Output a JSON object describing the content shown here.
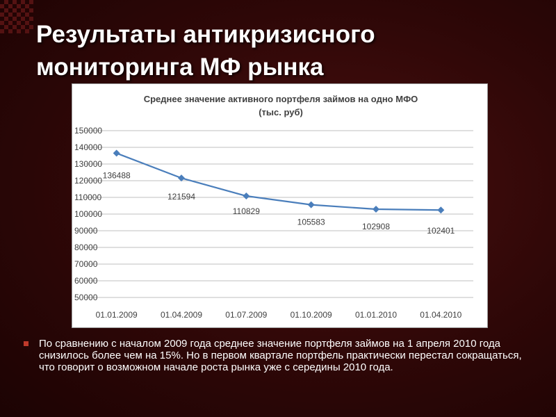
{
  "slide": {
    "title_line1": "Результаты антикризисного",
    "title_line2": "мониторинга МФ рынка",
    "paragraph": "По сравнению с началом 2009 года среднее значение портфеля займов на 1 апреля 2010 года снизилось более чем на 15%. Но в первом квартале портфель практически перестал сокращаться, что говорит о возможном начале роста рынка уже с середины 2010 года."
  },
  "colors": {
    "line": "#4a7ebb",
    "marker": "#4a7ebb",
    "bullet": "#c0392b"
  },
  "chart_data": {
    "type": "line",
    "title_line1": "Среднее значение активного портфеля займов на одно МФО",
    "title_line2": "(тыс. руб)",
    "categories": [
      "01.01.2009",
      "01.04.2009",
      "01.07.2009",
      "01.10.2009",
      "01.01.2010",
      "01.04.2010"
    ],
    "values": [
      136488,
      121594,
      110829,
      105583,
      102908,
      102401
    ],
    "data_labels": [
      "136488",
      "121594",
      "110829",
      "105583",
      "102908",
      "102401"
    ],
    "yticks": [
      "50000",
      "60000",
      "70000",
      "80000",
      "90000",
      "100000",
      "110000",
      "120000",
      "130000",
      "140000",
      "150000"
    ],
    "ytick_values": [
      50000,
      60000,
      70000,
      80000,
      90000,
      100000,
      110000,
      120000,
      130000,
      140000,
      150000
    ],
    "ylim": [
      50000,
      150000
    ],
    "grid": true,
    "legend": "none"
  }
}
